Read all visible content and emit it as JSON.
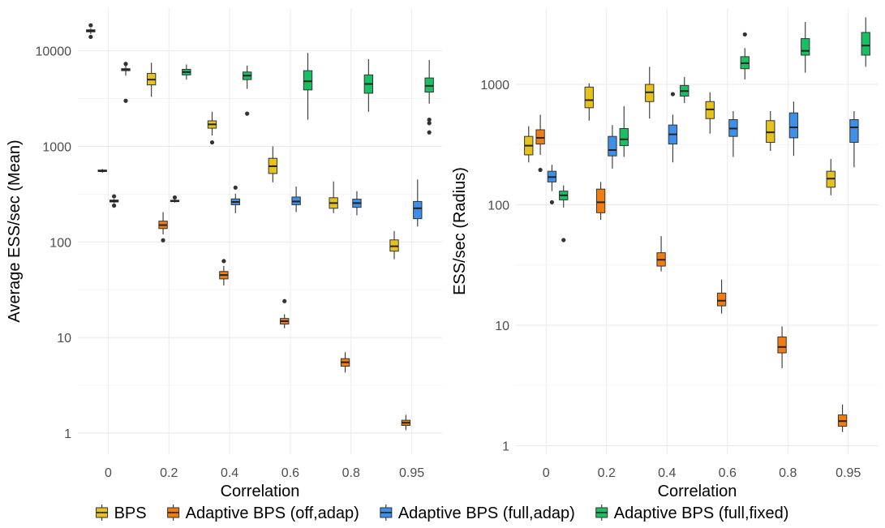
{
  "legend": {
    "placement": "bottom",
    "items": [
      {
        "label": "BPS",
        "color": "#E6C21F"
      },
      {
        "label": "Adaptive BPS (off,adap)",
        "color": "#F07D12"
      },
      {
        "label": "Adaptive BPS (full,adap)",
        "color": "#3D8FE8"
      },
      {
        "label": "Adaptive BPS (full,fixed)",
        "color": "#1BBF63"
      }
    ]
  },
  "chart_data": [
    {
      "type": "boxplot",
      "xlabel": "Correlation",
      "ylabel": "Average ESS/sec (Mean)",
      "yscale": "log10",
      "ylim": [
        0.6,
        28000
      ],
      "yticks": [
        1,
        10,
        100,
        1000,
        10000
      ],
      "ytick_labels": [
        "1",
        "10",
        "100",
        "1000",
        "10000"
      ],
      "categories": [
        "0",
        "0.2",
        "0.4",
        "0.6",
        "0.8",
        "0.95"
      ],
      "grid": true,
      "series": [
        {
          "name": "BPS",
          "color": "#E6C21F",
          "boxes": [
            {
              "category": "0",
              "min": 15000,
              "q1": 15800,
              "median": 16200,
              "q3": 16600,
              "max": 17200,
              "outliers": [
                14000,
                18500
              ]
            },
            {
              "category": "0.2",
              "min": 3300,
              "q1": 4400,
              "median": 5000,
              "q3": 5800,
              "max": 7500,
              "outliers": []
            },
            {
              "category": "0.4",
              "min": 1300,
              "q1": 1550,
              "median": 1700,
              "q3": 1850,
              "max": 2300,
              "outliers": [
                1100
              ]
            },
            {
              "category": "0.6",
              "min": 420,
              "q1": 520,
              "median": 620,
              "q3": 750,
              "max": 1000,
              "outliers": []
            },
            {
              "category": "0.8",
              "min": 200,
              "q1": 225,
              "median": 255,
              "q3": 290,
              "max": 430,
              "outliers": []
            },
            {
              "category": "0.95",
              "min": 66,
              "q1": 80,
              "median": 90,
              "q3": 105,
              "max": 130,
              "outliers": []
            }
          ]
        },
        {
          "name": "Adaptive BPS (off,adap)",
          "color": "#F07D12",
          "boxes": [
            {
              "category": "0",
              "min": 530,
              "q1": 545,
              "median": 555,
              "q3": 565,
              "max": 580,
              "outliers": []
            },
            {
              "category": "0.2",
              "min": 120,
              "q1": 138,
              "median": 150,
              "q3": 165,
              "max": 205,
              "outliers": [
                104
              ]
            },
            {
              "category": "0.4",
              "min": 35,
              "q1": 41,
              "median": 45,
              "q3": 49,
              "max": 56,
              "outliers": [
                63
              ]
            },
            {
              "category": "0.6",
              "min": 12.5,
              "q1": 13.8,
              "median": 14.8,
              "q3": 15.8,
              "max": 17.5,
              "outliers": [
                24
              ]
            },
            {
              "category": "0.8",
              "min": 4.3,
              "q1": 5.0,
              "median": 5.5,
              "q3": 6.0,
              "max": 7.0,
              "outliers": []
            },
            {
              "category": "0.95",
              "min": 1.07,
              "q1": 1.2,
              "median": 1.28,
              "q3": 1.36,
              "max": 1.55,
              "outliers": []
            }
          ]
        },
        {
          "name": "Adaptive BPS (full,adap)",
          "color": "#3D8FE8",
          "boxes": [
            {
              "category": "0",
              "min": 255,
              "q1": 262,
              "median": 268,
              "q3": 274,
              "max": 282,
              "outliers": [
                240,
                300
              ]
            },
            {
              "category": "0.2",
              "min": 258,
              "q1": 264,
              "median": 268,
              "q3": 273,
              "max": 280,
              "outliers": [
                292
              ]
            },
            {
              "category": "0.4",
              "min": 200,
              "q1": 245,
              "median": 262,
              "q3": 282,
              "max": 320,
              "outliers": [
                370
              ]
            },
            {
              "category": "0.6",
              "min": 205,
              "q1": 245,
              "median": 265,
              "q3": 295,
              "max": 380,
              "outliers": []
            },
            {
              "category": "0.8",
              "min": 190,
              "q1": 230,
              "median": 255,
              "q3": 280,
              "max": 340,
              "outliers": []
            },
            {
              "category": "0.95",
              "min": 145,
              "q1": 175,
              "median": 225,
              "q3": 265,
              "max": 450,
              "outliers": []
            }
          ]
        },
        {
          "name": "Adaptive BPS (full,fixed)",
          "color": "#1BBF63",
          "boxes": [
            {
              "category": "0",
              "min": 5500,
              "q1": 6200,
              "median": 6400,
              "q3": 6500,
              "max": 7000,
              "outliers": [
                7300,
                3000
              ]
            },
            {
              "category": "0.2",
              "min": 5000,
              "q1": 5600,
              "median": 6000,
              "q3": 6400,
              "max": 7200,
              "outliers": []
            },
            {
              "category": "0.4",
              "min": 4000,
              "q1": 5000,
              "median": 5500,
              "q3": 6000,
              "max": 7000,
              "outliers": [
                2200
              ]
            },
            {
              "category": "0.6",
              "min": 1900,
              "q1": 3900,
              "median": 4800,
              "q3": 6200,
              "max": 9500,
              "outliers": []
            },
            {
              "category": "0.8",
              "min": 2300,
              "q1": 3600,
              "median": 4500,
              "q3": 5600,
              "max": 8200,
              "outliers": []
            },
            {
              "category": "0.95",
              "min": 2800,
              "q1": 3700,
              "median": 4300,
              "q3": 5200,
              "max": 8000,
              "outliers": [
                1900,
                1750,
                1400
              ]
            }
          ]
        }
      ]
    },
    {
      "type": "boxplot",
      "xlabel": "Correlation",
      "ylabel": "ESS/sec (Radius)",
      "yscale": "log10",
      "ylim": [
        0.85,
        4300
      ],
      "yticks": [
        1,
        10,
        100,
        1000
      ],
      "ytick_labels": [
        "1",
        "10",
        "100",
        "1000"
      ],
      "categories": [
        "0",
        "0.2",
        "0.4",
        "0.6",
        "0.8",
        "0.95"
      ],
      "grid": true,
      "series": [
        {
          "name": "BPS",
          "color": "#E6C21F",
          "boxes": [
            {
              "category": "0",
              "min": 225,
              "q1": 260,
              "median": 310,
              "q3": 370,
              "max": 450,
              "outliers": []
            },
            {
              "category": "0.2",
              "min": 500,
              "q1": 640,
              "median": 740,
              "q3": 950,
              "max": 1020,
              "outliers": []
            },
            {
              "category": "0.4",
              "min": 520,
              "q1": 720,
              "median": 860,
              "q3": 1000,
              "max": 1400,
              "outliers": []
            },
            {
              "category": "0.6",
              "min": 390,
              "q1": 520,
              "median": 620,
              "q3": 720,
              "max": 860,
              "outliers": []
            },
            {
              "category": "0.8",
              "min": 280,
              "q1": 330,
              "median": 400,
              "q3": 500,
              "max": 600,
              "outliers": []
            },
            {
              "category": "0.95",
              "min": 120,
              "q1": 140,
              "median": 165,
              "q3": 190,
              "max": 240,
              "outliers": []
            }
          ]
        },
        {
          "name": "Adaptive BPS (off,adap)",
          "color": "#F07D12",
          "boxes": [
            {
              "category": "0",
              "min": 260,
              "q1": 320,
              "median": 360,
              "q3": 420,
              "max": 560,
              "outliers": [
                195
              ]
            },
            {
              "category": "0.2",
              "min": 75,
              "q1": 86,
              "median": 105,
              "q3": 135,
              "max": 155,
              "outliers": []
            },
            {
              "category": "0.4",
              "min": 28,
              "q1": 31,
              "median": 35,
              "q3": 40,
              "max": 55,
              "outliers": []
            },
            {
              "category": "0.6",
              "min": 12.5,
              "q1": 14.5,
              "median": 16,
              "q3": 18.5,
              "max": 24,
              "outliers": []
            },
            {
              "category": "0.8",
              "min": 4.4,
              "q1": 5.9,
              "median": 6.6,
              "q3": 8.0,
              "max": 9.8,
              "outliers": []
            },
            {
              "category": "0.95",
              "min": 1.3,
              "q1": 1.45,
              "median": 1.6,
              "q3": 1.8,
              "max": 2.2,
              "outliers": []
            }
          ]
        },
        {
          "name": "Adaptive BPS (full,adap)",
          "color": "#3D8FE8",
          "boxes": [
            {
              "category": "0",
              "min": 130,
              "q1": 155,
              "median": 170,
              "q3": 190,
              "max": 215,
              "outliers": [
                105
              ]
            },
            {
              "category": "0.2",
              "min": 200,
              "q1": 255,
              "median": 285,
              "q3": 370,
              "max": 460,
              "outliers": []
            },
            {
              "category": "0.4",
              "min": 225,
              "q1": 320,
              "median": 385,
              "q3": 460,
              "max": 560,
              "outliers": [
                830
              ]
            },
            {
              "category": "0.6",
              "min": 250,
              "q1": 370,
              "median": 430,
              "q3": 510,
              "max": 600,
              "outliers": []
            },
            {
              "category": "0.8",
              "min": 255,
              "q1": 360,
              "median": 440,
              "q3": 580,
              "max": 720,
              "outliers": []
            },
            {
              "category": "0.95",
              "min": 205,
              "q1": 330,
              "median": 440,
              "q3": 510,
              "max": 600,
              "outliers": []
            }
          ]
        },
        {
          "name": "Adaptive BPS (full,fixed)",
          "color": "#1BBF63",
          "boxes": [
            {
              "category": "0",
              "min": 95,
              "q1": 110,
              "median": 120,
              "q3": 130,
              "max": 145,
              "outliers": [
                51
              ]
            },
            {
              "category": "0.2",
              "min": 250,
              "q1": 310,
              "median": 350,
              "q3": 430,
              "max": 660,
              "outliers": []
            },
            {
              "category": "0.4",
              "min": 700,
              "q1": 800,
              "median": 880,
              "q3": 980,
              "max": 1150,
              "outliers": []
            },
            {
              "category": "0.6",
              "min": 1100,
              "q1": 1350,
              "median": 1500,
              "q3": 1700,
              "max": 2000,
              "outliers": [
                2600
              ]
            },
            {
              "category": "0.8",
              "min": 1250,
              "q1": 1750,
              "median": 1900,
              "q3": 2400,
              "max": 3300,
              "outliers": []
            },
            {
              "category": "0.95",
              "min": 1400,
              "q1": 1750,
              "median": 2100,
              "q3": 2700,
              "max": 3600,
              "outliers": []
            }
          ]
        }
      ]
    }
  ]
}
